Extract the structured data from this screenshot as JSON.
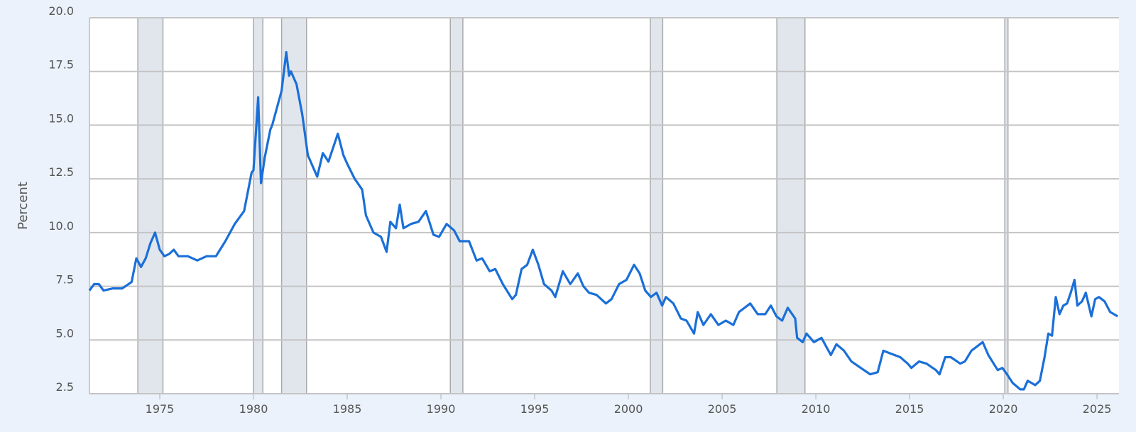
{
  "chart_data": {
    "type": "line",
    "title": "",
    "xlabel": "",
    "ylabel": "Percent",
    "xlim": [
      1971.25,
      2026.17
    ],
    "ylim": [
      2.5,
      20.0
    ],
    "grid": true,
    "yticks": [
      "2.5",
      "5.0",
      "7.5",
      "10.0",
      "12.5",
      "15.0",
      "17.5",
      "20.0"
    ],
    "xticks": [
      "1975",
      "1980",
      "1985",
      "1990",
      "1995",
      "2000",
      "2005",
      "2010",
      "2015",
      "2020",
      "2025"
    ],
    "line_color": "#1a6fd8",
    "recession_color": "#e1e6ed",
    "recessions": [
      [
        1973.83,
        1975.17
      ],
      [
        1980.0,
        1980.5
      ],
      [
        1981.5,
        1982.83
      ],
      [
        1990.5,
        1991.17
      ],
      [
        2001.17,
        2001.83
      ],
      [
        2007.92,
        2009.42
      ],
      [
        2020.08,
        2020.25
      ]
    ],
    "series": [
      {
        "name": "Percent",
        "x": [
          1971.25,
          1971.5,
          1971.75,
          1972.0,
          1972.5,
          1973.0,
          1973.5,
          1973.75,
          1974.0,
          1974.25,
          1974.5,
          1974.75,
          1975.0,
          1975.25,
          1975.5,
          1975.75,
          1976.0,
          1976.5,
          1977.0,
          1977.5,
          1978.0,
          1978.5,
          1978.75,
          1979.0,
          1979.5,
          1979.9,
          1980.0,
          1980.25,
          1980.4,
          1980.6,
          1980.9,
          1981.0,
          1981.5,
          1981.75,
          1981.9,
          1982.0,
          1982.3,
          1982.6,
          1982.9,
          1983.2,
          1983.4,
          1983.7,
          1984.0,
          1984.5,
          1984.8,
          1985.0,
          1985.4,
          1985.8,
          1986.0,
          1986.4,
          1986.8,
          1987.1,
          1987.3,
          1987.6,
          1987.8,
          1988.0,
          1988.4,
          1988.8,
          1989.2,
          1989.6,
          1989.9,
          1990.3,
          1990.7,
          1991.0,
          1991.5,
          1991.9,
          1992.2,
          1992.6,
          1992.9,
          1993.3,
          1993.8,
          1994.0,
          1994.3,
          1994.6,
          1994.9,
          1995.2,
          1995.5,
          1995.9,
          1996.1,
          1996.5,
          1996.9,
          1997.3,
          1997.6,
          1997.9,
          1998.3,
          1998.8,
          1999.1,
          1999.5,
          1999.9,
          2000.3,
          2000.6,
          2000.9,
          2001.2,
          2001.5,
          2001.8,
          2002.0,
          2002.4,
          2002.8,
          2003.1,
          2003.5,
          2003.7,
          2004.0,
          2004.4,
          2004.8,
          2005.2,
          2005.6,
          2005.9,
          2006.5,
          2006.9,
          2007.3,
          2007.6,
          2007.9,
          2008.2,
          2008.5,
          2008.9,
          2009.0,
          2009.3,
          2009.5,
          2009.9,
          2010.3,
          2010.8,
          2011.1,
          2011.5,
          2011.9,
          2012.4,
          2012.9,
          2013.3,
          2013.6,
          2013.9,
          2014.5,
          2014.9,
          2015.1,
          2015.5,
          2015.9,
          2016.4,
          2016.6,
          2016.9,
          2017.2,
          2017.7,
          2017.95,
          2018.3,
          2018.9,
          2019.2,
          2019.7,
          2019.95,
          2020.2,
          2020.5,
          2020.9,
          2021.1,
          2021.3,
          2021.7,
          2021.95,
          2022.2,
          2022.4,
          2022.6,
          2022.8,
          2023.0,
          2023.2,
          2023.4,
          2023.6,
          2023.8,
          2023.95,
          2024.2,
          2024.4,
          2024.7,
          2024.9,
          2025.1,
          2025.4,
          2025.7,
          2025.9,
          2026.1
        ],
        "y": [
          7.3,
          7.6,
          7.6,
          7.3,
          7.4,
          7.4,
          7.7,
          8.8,
          8.4,
          8.8,
          9.5,
          10.0,
          9.2,
          8.9,
          9.0,
          9.2,
          8.9,
          8.9,
          8.7,
          8.9,
          8.9,
          9.6,
          10.0,
          10.4,
          11.0,
          12.8,
          12.9,
          16.3,
          12.3,
          13.5,
          14.8,
          15.0,
          16.6,
          18.4,
          17.3,
          17.5,
          16.9,
          15.5,
          13.6,
          13.0,
          12.6,
          13.7,
          13.3,
          14.6,
          13.6,
          13.2,
          12.5,
          12.0,
          10.8,
          10.0,
          9.8,
          9.1,
          10.5,
          10.2,
          11.3,
          10.2,
          10.4,
          10.5,
          11.0,
          9.9,
          9.8,
          10.4,
          10.1,
          9.6,
          9.6,
          8.7,
          8.8,
          8.2,
          8.3,
          7.6,
          6.9,
          7.1,
          8.3,
          8.5,
          9.2,
          8.5,
          7.6,
          7.3,
          7.0,
          8.2,
          7.6,
          8.1,
          7.5,
          7.2,
          7.1,
          6.7,
          6.9,
          7.6,
          7.8,
          8.5,
          8.1,
          7.3,
          7.0,
          7.2,
          6.6,
          7.0,
          6.7,
          6.0,
          5.9,
          5.3,
          6.3,
          5.7,
          6.2,
          5.7,
          5.9,
          5.7,
          6.3,
          6.7,
          6.2,
          6.2,
          6.6,
          6.1,
          5.9,
          6.5,
          6.0,
          5.1,
          4.9,
          5.3,
          4.9,
          5.1,
          4.3,
          4.8,
          4.5,
          4.0,
          3.7,
          3.4,
          3.5,
          4.5,
          4.4,
          4.2,
          3.9,
          3.7,
          4.0,
          3.9,
          3.6,
          3.4,
          4.2,
          4.2,
          3.9,
          4.0,
          4.5,
          4.9,
          4.3,
          3.6,
          3.7,
          3.4,
          3.0,
          2.7,
          2.7,
          3.1,
          2.9,
          3.1,
          4.2,
          5.3,
          5.2,
          7.0,
          6.2,
          6.6,
          6.7,
          7.2,
          7.8,
          6.6,
          6.8,
          7.2,
          6.1,
          6.9,
          7.0,
          6.8,
          6.3,
          6.2,
          6.1
        ]
      }
    ]
  }
}
